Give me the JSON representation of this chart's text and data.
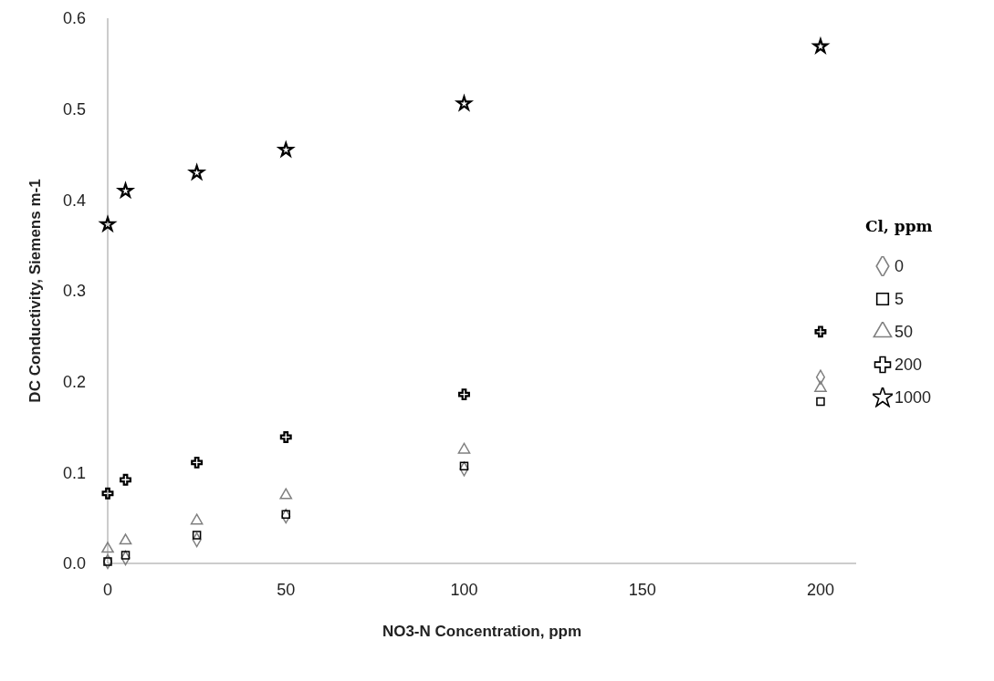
{
  "chart_data": {
    "type": "scatter",
    "xlabel": "NO3-N  Concentration, ppm",
    "ylabel": "DC Conductivity, Siemens m-1",
    "legend_title": "Cl, ppm",
    "legend": "right",
    "grid": false,
    "x": [
      0,
      5,
      25,
      50,
      100,
      200
    ],
    "xlim": [
      0,
      210
    ],
    "xticks": [
      0,
      50,
      100,
      150,
      200
    ],
    "ylim": [
      0,
      0.6
    ],
    "yticks": [
      {
        "value": 0,
        "label": "0.0"
      },
      0.1,
      0.2,
      0.3,
      0.4,
      0.5,
      0.6
    ],
    "series": [
      {
        "name": "0",
        "color": "#808080",
        "marker": "diamond",
        "values": [
          0.002,
          0.006,
          0.026,
          0.052,
          0.104,
          0.205
        ]
      },
      {
        "name": "5",
        "color": "#000000",
        "marker": "square",
        "values": [
          0.002,
          0.009,
          0.031,
          0.054,
          0.107,
          0.178
        ]
      },
      {
        "name": "50",
        "color": "#808080",
        "marker": "triangle",
        "values": [
          0.016,
          0.025,
          0.047,
          0.075,
          0.125,
          0.193
        ]
      },
      {
        "name": "200",
        "color": "#000000",
        "marker": "cross",
        "values": [
          0.077,
          0.092,
          0.111,
          0.139,
          0.186,
          0.255
        ]
      },
      {
        "name": "1000",
        "color": "#000000",
        "marker": "star",
        "values": [
          0.373,
          0.41,
          0.43,
          0.455,
          0.506,
          0.569
        ]
      }
    ]
  }
}
